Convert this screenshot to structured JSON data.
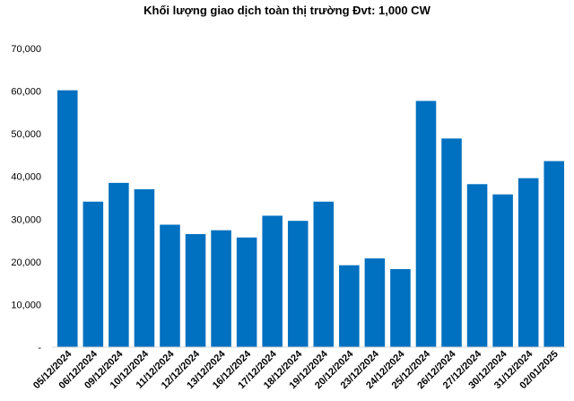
{
  "chart_data": {
    "type": "bar",
    "title": "Khối lượng giao dịch toàn thị trường Đvt: 1,000 CW",
    "xlabel": "",
    "ylabel": "",
    "ylim": [
      0,
      70000
    ],
    "yticks": [
      0,
      10000,
      20000,
      30000,
      40000,
      50000,
      60000,
      70000
    ],
    "ytick_labels": [
      "-",
      "10,000",
      "20,000",
      "30,000",
      "40,000",
      "50,000",
      "60,000",
      "70,000"
    ],
    "categories": [
      "05/12/2024",
      "06/12/2024",
      "09/12/2024",
      "10/12/2024",
      "11/12/2024",
      "12/12/2024",
      "13/12/2024",
      "16/12/2024",
      "17/12/2024",
      "18/12/2024",
      "19/12/2024",
      "20/12/2024",
      "23/12/2024",
      "24/12/2024",
      "25/12/2024",
      "26/12/2024",
      "27/12/2024",
      "30/12/2024",
      "31/12/2024",
      "02/01/2025"
    ],
    "values": [
      60200,
      34100,
      38500,
      37000,
      28700,
      26500,
      27400,
      25700,
      30800,
      29600,
      34100,
      19200,
      20800,
      18300,
      57700,
      48900,
      38200,
      35800,
      39600,
      43600
    ],
    "bar_color": "#0070C0",
    "grid": false,
    "legend": "none"
  }
}
